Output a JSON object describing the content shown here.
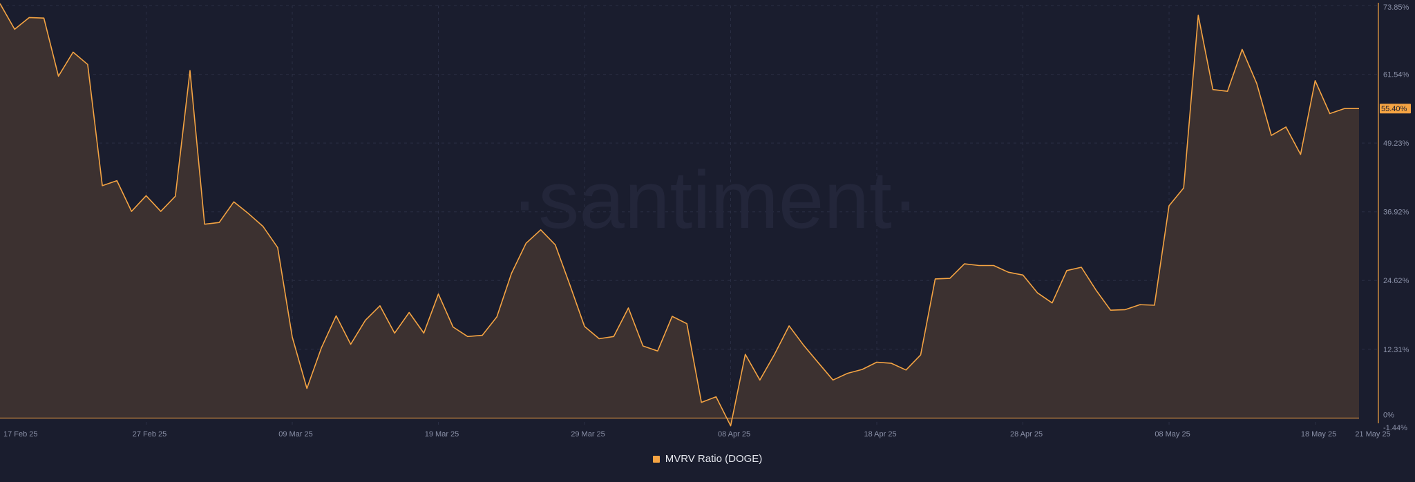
{
  "chart_data": {
    "type": "area",
    "watermark": "·santiment·",
    "series": [
      {
        "name": "MVRV Ratio (DOGE)",
        "color": "#f5a443",
        "x": [
          "2025-02-17",
          "2025-02-18",
          "2025-02-19",
          "2025-02-20",
          "2025-02-21",
          "2025-02-22",
          "2025-02-23",
          "2025-02-24",
          "2025-02-25",
          "2025-02-26",
          "2025-02-27",
          "2025-02-28",
          "2025-03-01",
          "2025-03-02",
          "2025-03-03",
          "2025-03-04",
          "2025-03-05",
          "2025-03-06",
          "2025-03-07",
          "2025-03-08",
          "2025-03-09",
          "2025-03-10",
          "2025-03-11",
          "2025-03-12",
          "2025-03-13",
          "2025-03-14",
          "2025-03-15",
          "2025-03-16",
          "2025-03-17",
          "2025-03-18",
          "2025-03-19",
          "2025-03-20",
          "2025-03-21",
          "2025-03-22",
          "2025-03-23",
          "2025-03-24",
          "2025-03-25",
          "2025-03-26",
          "2025-03-27",
          "2025-03-28",
          "2025-03-29",
          "2025-03-30",
          "2025-03-31",
          "2025-04-01",
          "2025-04-02",
          "2025-04-03",
          "2025-04-04",
          "2025-04-05",
          "2025-04-06",
          "2025-04-07",
          "2025-04-08",
          "2025-04-09",
          "2025-04-10",
          "2025-04-11",
          "2025-04-12",
          "2025-04-13",
          "2025-04-14",
          "2025-04-15",
          "2025-04-16",
          "2025-04-17",
          "2025-04-18",
          "2025-04-19",
          "2025-04-20",
          "2025-04-21",
          "2025-04-22",
          "2025-04-23",
          "2025-04-24",
          "2025-04-25",
          "2025-04-26",
          "2025-04-27",
          "2025-04-28",
          "2025-04-29",
          "2025-04-30",
          "2025-05-01",
          "2025-05-02",
          "2025-05-03",
          "2025-05-04",
          "2025-05-05",
          "2025-05-06",
          "2025-05-07",
          "2025-05-08",
          "2025-05-09",
          "2025-05-10",
          "2025-05-11",
          "2025-05-12",
          "2025-05-13",
          "2025-05-14",
          "2025-05-15",
          "2025-05-16",
          "2025-05-17",
          "2025-05-18",
          "2025-05-19",
          "2025-05-20",
          "2025-05-21"
        ],
        "values": [
          74.2,
          69.6,
          71.7,
          71.6,
          61.2,
          65.5,
          63.3,
          41.6,
          42.5,
          37.0,
          39.8,
          37.0,
          39.7,
          62.2,
          34.7,
          35.0,
          38.7,
          36.6,
          34.3,
          30.5,
          14.5,
          5.3,
          12.6,
          18.3,
          13.2,
          17.5,
          20.1,
          15.2,
          18.9,
          15.2,
          22.2,
          16.3,
          14.6,
          14.8,
          18.1,
          25.9,
          31.3,
          33.7,
          31.0,
          23.8,
          16.4,
          14.2,
          14.6,
          19.7,
          12.9,
          12.0,
          18.2,
          16.9,
          2.8,
          3.8,
          -1.4,
          11.4,
          6.8,
          11.4,
          16.5,
          13.0,
          9.9,
          6.8,
          8.0,
          8.7,
          10.0,
          9.8,
          8.6,
          11.3,
          24.9,
          25.0,
          27.6,
          27.3,
          27.3,
          26.1,
          25.6,
          22.4,
          20.6,
          26.4,
          27.0,
          22.9,
          19.3,
          19.4,
          20.3,
          20.2,
          38.0,
          41.2,
          72.1,
          58.8,
          58.5,
          66.0,
          59.9,
          50.6,
          52.1,
          47.2,
          60.4,
          54.5,
          55.4,
          55.4
        ]
      }
    ],
    "ylim": [
      -1.44,
      73.85
    ],
    "y_ticks": [
      "73.85%",
      "61.54%",
      "49.23%",
      "36.92%",
      "24.62%",
      "12.31%",
      "0%",
      "-1.44%"
    ],
    "x_ticks": [
      "17 Feb 25",
      "27 Feb 25",
      "09 Mar 25",
      "19 Mar 25",
      "29 Mar 25",
      "08 Apr 25",
      "18 Apr 25",
      "28 Apr 25",
      "08 May 25",
      "18 May 25",
      "21 May 25"
    ],
    "last_value_label": "55.40%",
    "grid": true,
    "legend": "bottom-center",
    "colors": {
      "background": "#1a1d2e",
      "fill": "#3c3130",
      "grid": "#2b2f44",
      "axis_text": "#8b91a8",
      "axis_line": "#f5a443"
    }
  }
}
